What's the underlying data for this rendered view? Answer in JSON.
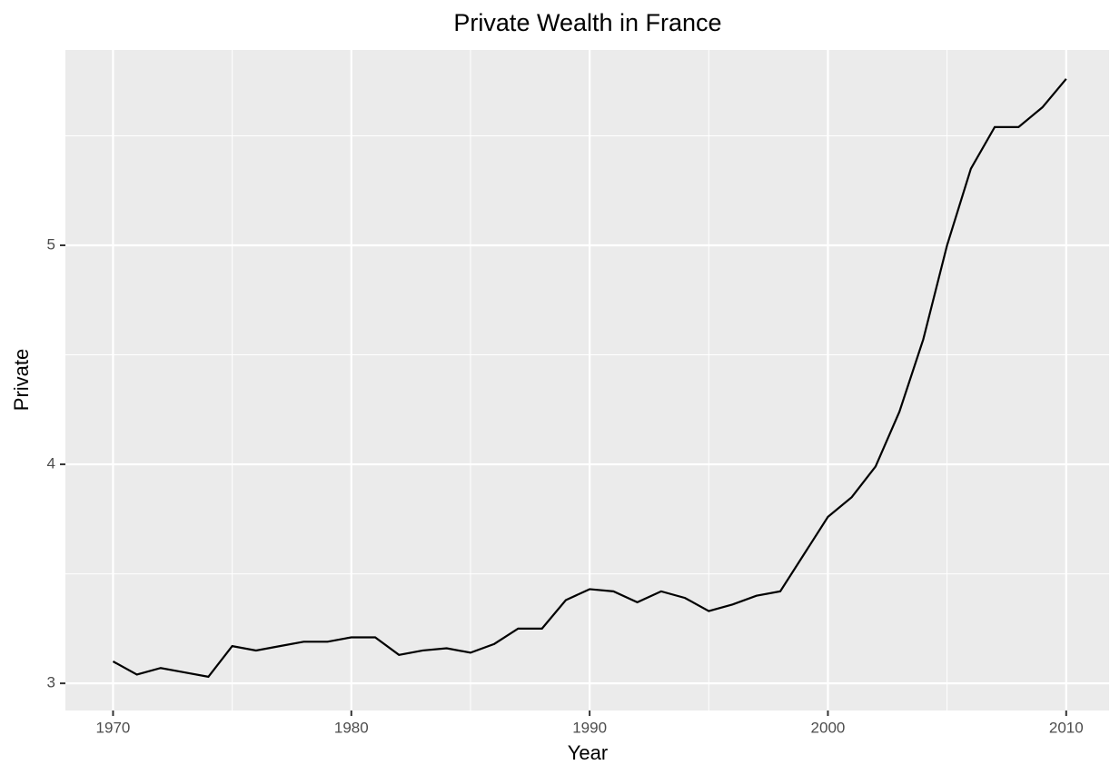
{
  "chart_data": {
    "type": "line",
    "title": "Private Wealth in France",
    "x_label": "Year",
    "y_label": "Private",
    "x": [
      1970,
      1971,
      1972,
      1973,
      1974,
      1975,
      1976,
      1977,
      1978,
      1979,
      1980,
      1981,
      1982,
      1983,
      1984,
      1985,
      1986,
      1987,
      1988,
      1989,
      1990,
      1991,
      1992,
      1993,
      1994,
      1995,
      1996,
      1997,
      1998,
      1999,
      2000,
      2001,
      2002,
      2003,
      2004,
      2005,
      2006,
      2007,
      2008,
      2009,
      2010
    ],
    "series": [
      {
        "name": "Private",
        "color": "#000000",
        "values": [
          3.1,
          3.04,
          3.07,
          3.05,
          3.03,
          3.17,
          3.15,
          3.17,
          3.19,
          3.19,
          3.21,
          3.21,
          3.13,
          3.15,
          3.16,
          3.14,
          3.18,
          3.25,
          3.25,
          3.38,
          3.43,
          3.42,
          3.37,
          3.42,
          3.39,
          3.33,
          3.36,
          3.4,
          3.42,
          3.59,
          3.76,
          3.85,
          3.99,
          4.24,
          4.57,
          5.0,
          5.35,
          5.54,
          5.54,
          5.63,
          5.76
        ]
      }
    ],
    "xlim": [
      1968,
      2011.8
    ],
    "xticks": [
      1970,
      1980,
      1990,
      2000,
      2010
    ],
    "ylim": [
      2.876,
      5.892
    ],
    "yticks": [
      3,
      4,
      5
    ],
    "grid": true
  }
}
